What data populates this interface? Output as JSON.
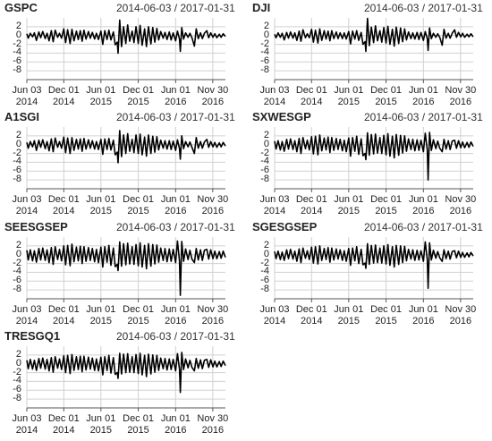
{
  "chart_data": {
    "type": "line",
    "subtitle": "2014-06-03 / 2017-01-31",
    "color": "#000000",
    "grid": true,
    "xlim": [
      "2014-06-03",
      "2017-01-31"
    ],
    "xticks": [
      {
        "value": "2014-06-03",
        "label": "Jun 03\n2014"
      },
      {
        "value": "2014-12-01",
        "label": "Dec 01\n2014"
      },
      {
        "value": "2015-06-01",
        "label": "Jun 01\n2015"
      },
      {
        "value": "2015-12-01",
        "label": "Dec 01\n2015"
      },
      {
        "value": "2016-06-01",
        "label": "Jun 01\n2016"
      },
      {
        "value": "2016-11-30",
        "label": "Nov 30\n2016"
      }
    ],
    "ylim": [
      -10,
      4
    ],
    "yticks": [
      2,
      0,
      -2,
      -4,
      -6,
      -8
    ],
    "x": [
      "2014-06-03",
      "2014-06-10",
      "2014-06-20",
      "2014-07-01",
      "2014-07-10",
      "2014-07-20",
      "2014-08-01",
      "2014-08-10",
      "2014-08-20",
      "2014-09-01",
      "2014-09-10",
      "2014-09-20",
      "2014-10-01",
      "2014-10-10",
      "2014-10-20",
      "2014-11-01",
      "2014-11-10",
      "2014-11-20",
      "2014-12-01",
      "2014-12-10",
      "2014-12-20",
      "2015-01-01",
      "2015-01-10",
      "2015-01-20",
      "2015-02-01",
      "2015-02-10",
      "2015-02-20",
      "2015-03-01",
      "2015-03-10",
      "2015-03-20",
      "2015-04-01",
      "2015-04-10",
      "2015-04-20",
      "2015-05-01",
      "2015-05-10",
      "2015-05-20",
      "2015-06-01",
      "2015-06-10",
      "2015-06-20",
      "2015-07-01",
      "2015-07-10",
      "2015-07-20",
      "2015-08-01",
      "2015-08-10",
      "2015-08-20",
      "2015-08-24",
      "2015-09-01",
      "2015-09-10",
      "2015-09-20",
      "2015-10-01",
      "2015-10-10",
      "2015-10-20",
      "2015-11-01",
      "2015-11-10",
      "2015-11-20",
      "2015-12-01",
      "2015-12-10",
      "2015-12-20",
      "2016-01-01",
      "2016-01-10",
      "2016-01-20",
      "2016-02-01",
      "2016-02-10",
      "2016-02-20",
      "2016-03-01",
      "2016-03-10",
      "2016-03-20",
      "2016-04-01",
      "2016-04-10",
      "2016-04-20",
      "2016-05-01",
      "2016-05-10",
      "2016-05-20",
      "2016-06-01",
      "2016-06-10",
      "2016-06-20",
      "2016-06-24",
      "2016-07-01",
      "2016-07-10",
      "2016-07-20",
      "2016-08-01",
      "2016-08-10",
      "2016-08-20",
      "2016-09-01",
      "2016-09-10",
      "2016-09-20",
      "2016-10-01",
      "2016-10-10",
      "2016-10-20",
      "2016-11-01",
      "2016-11-10",
      "2016-11-20",
      "2016-12-01",
      "2016-12-10",
      "2016-12-20",
      "2017-01-01",
      "2017-01-10",
      "2017-01-20",
      "2017-01-31"
    ],
    "series": [
      {
        "name": "GSPC",
        "values": [
          0.4,
          -0.6,
          0.5,
          -0.3,
          0.6,
          -1.1,
          0.8,
          -0.5,
          0.9,
          -0.7,
          0.5,
          -1.2,
          1.1,
          -1.4,
          1.2,
          -0.4,
          0.5,
          -0.6,
          1.5,
          -1.6,
          1.3,
          -1.8,
          1.4,
          -1.2,
          1.0,
          -0.9,
          1.1,
          -1.3,
          1.2,
          -0.8,
          0.9,
          -0.6,
          0.7,
          -0.8,
          0.5,
          -0.9,
          1.0,
          -2.0,
          1.1,
          -0.9,
          1.2,
          -1.0,
          0.8,
          -2.1,
          -1.5,
          -4.0,
          3.5,
          -2.5,
          2.0,
          -1.8,
          2.4,
          -1.3,
          1.0,
          -1.6,
          2.0,
          -1.8,
          2.3,
          -2.2,
          1.5,
          -2.5,
          2.0,
          -1.9,
          1.8,
          -1.5,
          1.6,
          -1.0,
          0.9,
          -0.6,
          0.7,
          -0.9,
          0.8,
          -1.0,
          0.6,
          -1.2,
          1.0,
          -0.8,
          -3.6,
          1.8,
          -0.8,
          0.6,
          -0.4,
          0.5,
          -0.5,
          -2.4,
          1.5,
          -0.7,
          0.6,
          -0.7,
          0.5,
          1.1,
          -0.5,
          0.6,
          -0.4,
          0.4,
          -0.5,
          0.3,
          -0.4,
          0.4,
          -0.2
        ]
      },
      {
        "name": "DJI",
        "values": [
          0.3,
          -0.5,
          0.6,
          -0.4,
          0.5,
          -1.0,
          0.7,
          -0.6,
          0.8,
          -0.6,
          0.6,
          -1.1,
          1.0,
          -1.3,
          1.3,
          -0.5,
          0.4,
          -0.5,
          1.4,
          -1.5,
          1.2,
          -1.7,
          1.5,
          -1.1,
          1.1,
          -0.8,
          1.0,
          -1.2,
          1.1,
          -0.7,
          0.8,
          -0.7,
          0.6,
          -0.7,
          0.6,
          -0.8,
          0.9,
          -1.9,
          1.0,
          -0.8,
          1.1,
          -1.1,
          0.7,
          -2.0,
          -1.4,
          -3.6,
          3.9,
          -2.3,
          1.9,
          -1.6,
          2.2,
          -1.2,
          1.1,
          -1.5,
          1.8,
          -1.7,
          2.1,
          -2.0,
          1.4,
          -2.4,
          1.9,
          -1.8,
          1.7,
          -1.4,
          1.5,
          -1.0,
          0.8,
          -0.7,
          0.6,
          -0.8,
          0.7,
          -0.9,
          0.7,
          -1.1,
          0.9,
          -0.7,
          -3.4,
          1.7,
          -0.7,
          0.5,
          -0.4,
          0.4,
          -0.4,
          -2.2,
          1.4,
          -0.6,
          0.5,
          -0.6,
          0.5,
          1.3,
          -0.4,
          0.7,
          -0.3,
          0.5,
          -0.4,
          0.3,
          -0.3,
          0.4,
          -0.3
        ]
      },
      {
        "name": "A1SGI",
        "values": [
          0.5,
          -0.8,
          0.7,
          -0.5,
          0.9,
          -1.3,
          1.0,
          -0.6,
          1.1,
          -0.9,
          0.7,
          -1.4,
          1.3,
          -1.6,
          1.5,
          -0.6,
          0.7,
          -0.8,
          1.7,
          -1.8,
          1.5,
          -2.0,
          1.6,
          -1.3,
          1.2,
          -1.0,
          1.3,
          -1.5,
          1.4,
          -1.0,
          1.1,
          -0.8,
          0.9,
          -1.0,
          0.7,
          -1.1,
          1.2,
          -2.2,
          1.3,
          -1.1,
          1.4,
          -1.2,
          1.0,
          -2.3,
          -1.7,
          -4.1,
          3.2,
          -2.7,
          2.2,
          -2.0,
          2.5,
          -1.5,
          1.2,
          -1.8,
          2.2,
          -2.0,
          2.4,
          -2.3,
          1.7,
          -2.6,
          2.2,
          -2.0,
          1.9,
          -1.7,
          1.8,
          -1.2,
          1.0,
          -0.8,
          0.9,
          -1.0,
          0.9,
          -1.1,
          0.8,
          -1.3,
          1.1,
          -0.9,
          -3.3,
          2.0,
          -0.9,
          0.7,
          -0.5,
          0.6,
          -0.6,
          -2.0,
          1.6,
          -0.8,
          0.7,
          -0.8,
          0.6,
          1.2,
          -0.6,
          0.7,
          -0.5,
          0.5,
          -0.6,
          0.4,
          -0.5,
          0.5,
          -0.3
        ]
      },
      {
        "name": "SXWESGP",
        "values": [
          0.8,
          -1.0,
          0.9,
          -1.2,
          0.7,
          -1.5,
          1.2,
          -1.0,
          1.3,
          -1.1,
          0.9,
          -1.6,
          1.4,
          -2.0,
          1.6,
          -0.9,
          1.0,
          -1.2,
          1.8,
          -2.1,
          1.9,
          -2.3,
          2.2,
          -1.4,
          1.5,
          -1.2,
          1.7,
          -1.8,
          1.6,
          -1.3,
          1.4,
          -1.1,
          1.2,
          -1.4,
          1.0,
          -1.6,
          1.5,
          -2.6,
          1.6,
          -1.5,
          1.9,
          -2.2,
          1.3,
          -2.5,
          -2.0,
          -3.4,
          2.7,
          -2.4,
          2.3,
          -2.1,
          2.4,
          -1.9,
          1.6,
          -2.0,
          2.1,
          -2.3,
          2.5,
          -2.6,
          1.9,
          -3.0,
          2.3,
          -2.4,
          2.1,
          -1.9,
          2.0,
          -1.5,
          1.3,
          -1.1,
          1.2,
          -1.4,
          1.1,
          -1.3,
          1.0,
          -1.6,
          2.6,
          -1.2,
          -8.0,
          2.8,
          -1.3,
          1.1,
          -0.9,
          0.8,
          -0.8,
          -1.6,
          1.2,
          -1.0,
          0.9,
          -1.1,
          0.8,
          1.0,
          -0.8,
          0.9,
          -0.7,
          0.6,
          -0.7,
          0.5,
          -0.6,
          0.6,
          -0.4
        ]
      },
      {
        "name": "SEESGSEP",
        "values": [
          1.0,
          -1.2,
          1.1,
          -1.4,
          0.9,
          -1.7,
          1.4,
          -1.2,
          1.5,
          -1.3,
          1.1,
          -1.8,
          1.6,
          -2.2,
          1.8,
          -1.1,
          1.2,
          -1.4,
          2.0,
          -2.3,
          2.1,
          -2.5,
          2.4,
          -1.6,
          1.7,
          -1.4,
          1.9,
          -2.0,
          1.8,
          -1.5,
          1.6,
          -1.3,
          1.4,
          -1.6,
          1.2,
          -1.8,
          1.7,
          -2.8,
          1.8,
          -1.7,
          2.1,
          -2.4,
          1.5,
          -2.7,
          -2.2,
          -3.6,
          2.9,
          -2.6,
          2.5,
          -2.3,
          2.6,
          -2.1,
          1.8,
          -2.2,
          2.3,
          -2.5,
          2.7,
          -2.8,
          2.1,
          -3.2,
          2.5,
          -2.6,
          2.3,
          -2.1,
          2.2,
          -1.7,
          1.5,
          -1.3,
          1.4,
          -1.6,
          1.3,
          -1.5,
          1.2,
          -1.8,
          3.1,
          -1.4,
          -9.2,
          3.0,
          -1.5,
          1.3,
          -1.1,
          1.0,
          -1.0,
          -1.8,
          1.4,
          -1.2,
          1.1,
          -1.3,
          1.0,
          1.2,
          -1.0,
          1.1,
          -0.9,
          0.8,
          -0.9,
          0.7,
          -0.8,
          0.8,
          -0.6
        ]
      },
      {
        "name": "SGESGSEP",
        "values": [
          0.7,
          -0.9,
          0.8,
          -1.1,
          0.6,
          -1.3,
          1.1,
          -0.9,
          1.2,
          -1.0,
          0.8,
          -1.5,
          1.3,
          -1.8,
          1.5,
          -0.8,
          0.9,
          -1.1,
          1.7,
          -1.9,
          1.8,
          -2.1,
          2.0,
          -1.3,
          1.4,
          -1.1,
          1.6,
          -1.7,
          1.5,
          -1.2,
          1.3,
          -1.0,
          1.1,
          -1.3,
          0.9,
          -1.5,
          1.4,
          -2.4,
          1.5,
          -1.4,
          1.8,
          -2.0,
          1.2,
          -2.3,
          -1.9,
          -3.1,
          2.5,
          -2.2,
          2.1,
          -1.9,
          2.2,
          -1.8,
          1.5,
          -1.9,
          2.0,
          -2.1,
          2.3,
          -2.4,
          1.8,
          -2.8,
          2.1,
          -2.2,
          2.0,
          -1.8,
          1.9,
          -1.4,
          1.2,
          -1.0,
          1.1,
          -1.3,
          1.0,
          -1.2,
          0.9,
          -1.5,
          2.9,
          -1.1,
          -7.6,
          2.7,
          -1.2,
          1.0,
          -0.8,
          0.7,
          -0.7,
          -1.5,
          1.1,
          -0.9,
          0.8,
          -1.0,
          0.7,
          0.9,
          -0.7,
          0.8,
          -0.6,
          0.5,
          -0.6,
          0.4,
          -0.5,
          0.5,
          -0.3
        ]
      },
      {
        "name": "TRESGQ1",
        "values": [
          0.8,
          -1.1,
          1.0,
          -1.2,
          0.8,
          -1.5,
          1.2,
          -1.0,
          1.3,
          -1.2,
          1.0,
          -1.6,
          1.4,
          -1.9,
          1.6,
          -1.0,
          1.1,
          -1.3,
          1.8,
          -2.0,
          1.9,
          -2.2,
          2.1,
          -1.5,
          1.6,
          -1.3,
          1.7,
          -1.8,
          1.7,
          -1.4,
          1.5,
          -1.2,
          1.3,
          -1.5,
          1.1,
          -1.6,
          1.5,
          -2.5,
          1.6,
          -1.5,
          1.9,
          -2.1,
          1.4,
          -2.4,
          -2.0,
          -3.3,
          2.4,
          -2.3,
          2.2,
          -2.0,
          2.3,
          -1.9,
          1.6,
          -2.0,
          2.1,
          -2.2,
          2.4,
          -2.5,
          1.9,
          -2.9,
          2.2,
          -2.3,
          2.0,
          -1.9,
          1.9,
          -1.5,
          1.3,
          -1.1,
          1.2,
          -1.4,
          1.1,
          -1.3,
          1.0,
          -1.6,
          2.3,
          -1.2,
          -6.5,
          2.6,
          -1.3,
          1.1,
          -0.9,
          0.8,
          -0.8,
          -1.6,
          1.2,
          -1.0,
          0.9,
          -1.1,
          0.8,
          1.0,
          -0.8,
          0.9,
          -0.7,
          0.6,
          -0.7,
          0.5,
          -0.6,
          0.6,
          -0.4
        ]
      }
    ]
  }
}
